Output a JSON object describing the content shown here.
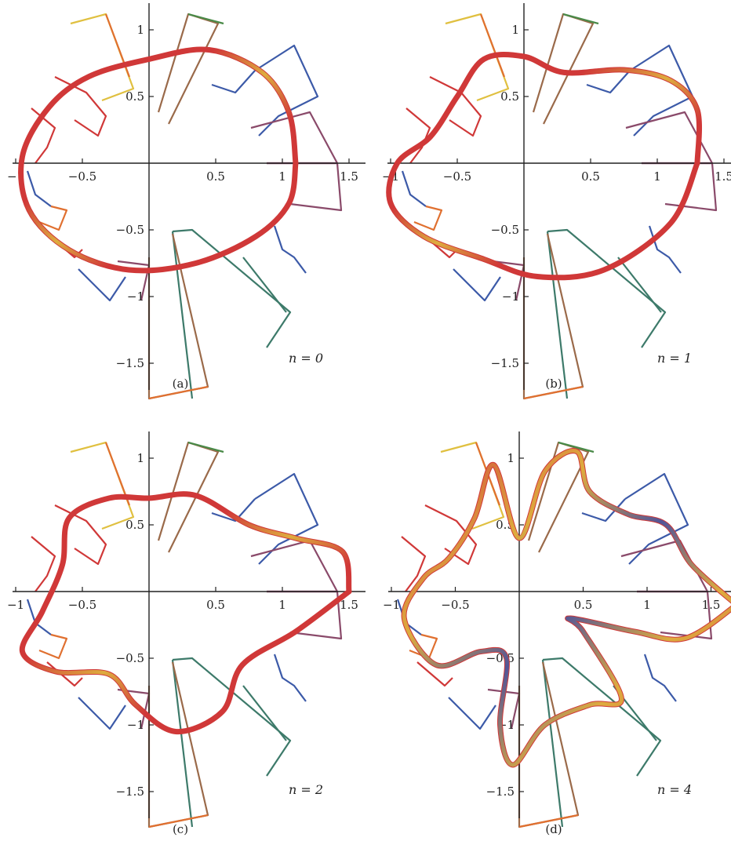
{
  "colors": {
    "blue": "#3c5aa8",
    "green": "#4a8a48",
    "teal": "#3d7a6a",
    "brown": "#9a6a4a",
    "orange": "#e07030",
    "yellow": "#e0c040",
    "red": "#d03838",
    "purple": "#8a4a6a",
    "axis": "#222222"
  },
  "chart_data": [
    {
      "type": "line",
      "panel": "a",
      "caption": "(a)",
      "annotation": "n = 0",
      "n": 0,
      "xticks": [
        -1,
        -0.5,
        0.5,
        1,
        1.5
      ],
      "xtick_labels": [
        "−1",
        "−0.5",
        "0.5",
        "1",
        "1.5"
      ],
      "yticks": [
        1,
        0.5,
        -0.5,
        -1,
        -1.5
      ],
      "ytick_labels": [
        "1",
        "0.5",
        "−0.5",
        "−1",
        "−1.5"
      ],
      "xlim": [
        -1.0,
        1.6
      ],
      "ylim": [
        -1.7,
        1.2
      ],
      "curve_color": "red-yellow gradient",
      "curve_points": [
        [
          1.1,
          0.0
        ],
        [
          1.05,
          0.38
        ],
        [
          0.85,
          0.68
        ],
        [
          0.45,
          0.85
        ],
        [
          0.0,
          0.78
        ],
        [
          -0.45,
          0.65
        ],
        [
          -0.75,
          0.42
        ],
        [
          -0.95,
          0.05
        ],
        [
          -0.9,
          -0.35
        ],
        [
          -0.6,
          -0.65
        ],
        [
          -0.15,
          -0.8
        ],
        [
          0.35,
          -0.75
        ],
        [
          0.8,
          -0.55
        ],
        [
          1.05,
          -0.3
        ],
        [
          1.1,
          0.0
        ]
      ]
    },
    {
      "type": "line",
      "panel": "b",
      "caption": "(b)",
      "annotation": "n = 1",
      "n": 1,
      "xticks": [
        -1,
        -0.5,
        0.5,
        1,
        1.5
      ],
      "xtick_labels": [
        "−1",
        "−0.5",
        "0.5",
        "1",
        "1.5"
      ],
      "yticks": [
        1,
        0.5,
        -0.5,
        -1,
        -1.5
      ],
      "ytick_labels": [
        "1",
        "0.5",
        "−0.5",
        "−1",
        "−1.5"
      ],
      "xlim": [
        -1.0,
        1.6
      ],
      "ylim": [
        -1.7,
        1.2
      ],
      "curve_color": "red-yellow gradient",
      "curve_points": [
        [
          1.3,
          0.0
        ],
        [
          1.3,
          0.4
        ],
        [
          1.1,
          0.62
        ],
        [
          0.75,
          0.7
        ],
        [
          0.3,
          0.68
        ],
        [
          0.0,
          0.8
        ],
        [
          -0.3,
          0.78
        ],
        [
          -0.5,
          0.5
        ],
        [
          -0.7,
          0.2
        ],
        [
          -0.95,
          0.0
        ],
        [
          -1.0,
          -0.3
        ],
        [
          -0.75,
          -0.55
        ],
        [
          -0.3,
          -0.72
        ],
        [
          0.1,
          -0.85
        ],
        [
          0.6,
          -0.8
        ],
        [
          1.1,
          -0.45
        ],
        [
          1.3,
          0.0
        ]
      ]
    },
    {
      "type": "line",
      "panel": "c",
      "caption": "(c)",
      "annotation": "n = 2",
      "n": 2,
      "xticks": [
        -1,
        -0.5,
        0.5,
        1,
        1.5
      ],
      "xtick_labels": [
        "−1",
        "−0.5",
        "0.5",
        "1",
        "1.5"
      ],
      "yticks": [
        1,
        0.5,
        -0.5,
        -1,
        -1.5
      ],
      "ytick_labels": [
        "1",
        "0.5",
        "−0.5",
        "−1",
        "−1.5"
      ],
      "xlim": [
        -1.0,
        1.6
      ],
      "ylim": [
        -1.7,
        1.2
      ],
      "curve_color": "red-yellow gradient",
      "curve_points": [
        [
          1.5,
          0.0
        ],
        [
          1.45,
          0.3
        ],
        [
          1.1,
          0.4
        ],
        [
          0.75,
          0.5
        ],
        [
          0.35,
          0.72
        ],
        [
          0.0,
          0.7
        ],
        [
          -0.3,
          0.7
        ],
        [
          -0.6,
          0.55
        ],
        [
          -0.65,
          0.2
        ],
        [
          -0.8,
          -0.15
        ],
        [
          -0.95,
          -0.45
        ],
        [
          -0.7,
          -0.6
        ],
        [
          -0.3,
          -0.62
        ],
        [
          -0.1,
          -0.85
        ],
        [
          0.2,
          -1.05
        ],
        [
          0.55,
          -0.9
        ],
        [
          0.7,
          -0.55
        ],
        [
          1.1,
          -0.3
        ],
        [
          1.5,
          0.0
        ]
      ]
    },
    {
      "type": "line",
      "panel": "d",
      "caption": "(d)",
      "annotation": "n = 4",
      "n": 4,
      "xticks": [
        -1,
        -0.5,
        0.5,
        1,
        1.5
      ],
      "xtick_labels": [
        "−1",
        "−0.5",
        "0.5",
        "1",
        "1.5"
      ],
      "yticks": [
        1,
        0.5,
        -0.5,
        -1,
        -1.5
      ],
      "ytick_labels": [
        "1",
        "0.5",
        "−0.5",
        "−1",
        "−1.5"
      ],
      "xlim": [
        -1.0,
        1.7
      ],
      "ylim": [
        -1.7,
        1.2
      ],
      "curve_color": "red-yellow-blue gradient",
      "curve_points": [
        [
          1.7,
          -0.1
        ],
        [
          1.35,
          0.2
        ],
        [
          1.15,
          0.5
        ],
        [
          0.85,
          0.58
        ],
        [
          0.55,
          0.75
        ],
        [
          0.45,
          1.05
        ],
        [
          0.2,
          0.9
        ],
        [
          0.0,
          0.4
        ],
        [
          -0.2,
          0.95
        ],
        [
          -0.35,
          0.55
        ],
        [
          -0.55,
          0.25
        ],
        [
          -0.75,
          0.1
        ],
        [
          -0.9,
          -0.2
        ],
        [
          -0.65,
          -0.55
        ],
        [
          -0.3,
          -0.45
        ],
        [
          -0.1,
          -0.5
        ],
        [
          -0.15,
          -1.0
        ],
        [
          -0.05,
          -1.3
        ],
        [
          0.2,
          -1.0
        ],
        [
          0.55,
          -0.85
        ],
        [
          0.8,
          -0.8
        ],
        [
          0.5,
          -0.3
        ],
        [
          0.4,
          -0.2
        ],
        [
          0.9,
          -0.3
        ],
        [
          1.3,
          -0.35
        ],
        [
          1.7,
          -0.1
        ]
      ]
    }
  ]
}
